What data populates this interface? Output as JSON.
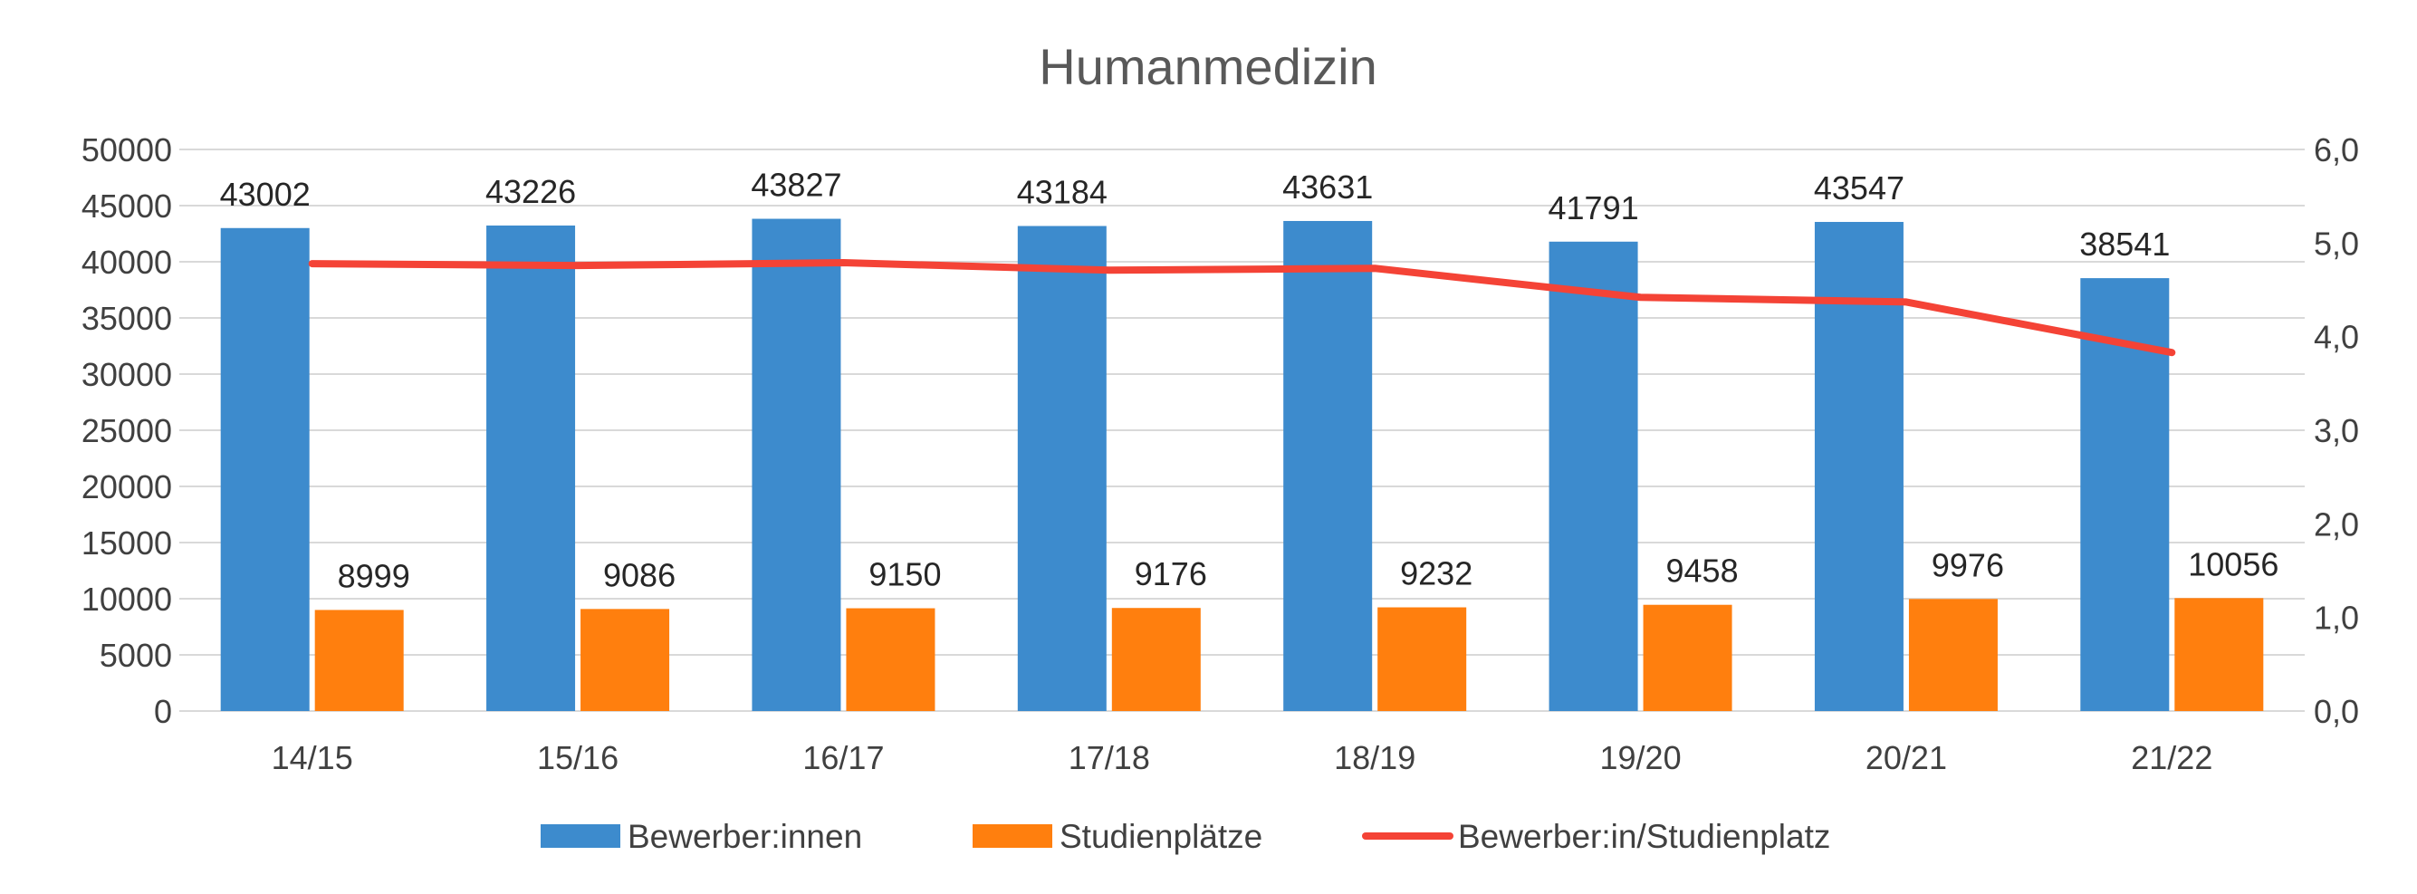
{
  "chart_data": {
    "type": "bar",
    "title": "Humanmedizin",
    "categories": [
      "14/15",
      "15/16",
      "16/17",
      "17/18",
      "18/19",
      "19/20",
      "20/21",
      "21/22"
    ],
    "series": [
      {
        "name": "Bewerber:innen",
        "type": "bar",
        "axis": "left",
        "color": "#3d8bcd",
        "values": [
          43002,
          43226,
          43827,
          43184,
          43631,
          41791,
          43547,
          38541
        ]
      },
      {
        "name": "Studienplätze",
        "type": "bar",
        "axis": "left",
        "color": "#ff7f0e",
        "values": [
          8999,
          9086,
          9150,
          9176,
          9232,
          9458,
          9976,
          10056
        ]
      },
      {
        "name": "Bewerber:in/Studienplatz",
        "type": "line",
        "axis": "right",
        "color": "#f44336",
        "values": [
          4.78,
          4.76,
          4.79,
          4.71,
          4.73,
          4.42,
          4.37,
          3.83
        ]
      }
    ],
    "yleft": {
      "min": 0,
      "max": 50000,
      "step": 5000,
      "tick_labels": [
        "0",
        "5000",
        "10000",
        "15000",
        "20000",
        "25000",
        "30000",
        "35000",
        "40000",
        "45000",
        "50000"
      ]
    },
    "yright": {
      "min": 0,
      "max": 6,
      "step": 1,
      "tick_labels": [
        "0,0",
        "1,0",
        "2,0",
        "3,0",
        "4,0",
        "5,0",
        "6,0"
      ]
    },
    "grid": true,
    "legend": "bottom"
  }
}
